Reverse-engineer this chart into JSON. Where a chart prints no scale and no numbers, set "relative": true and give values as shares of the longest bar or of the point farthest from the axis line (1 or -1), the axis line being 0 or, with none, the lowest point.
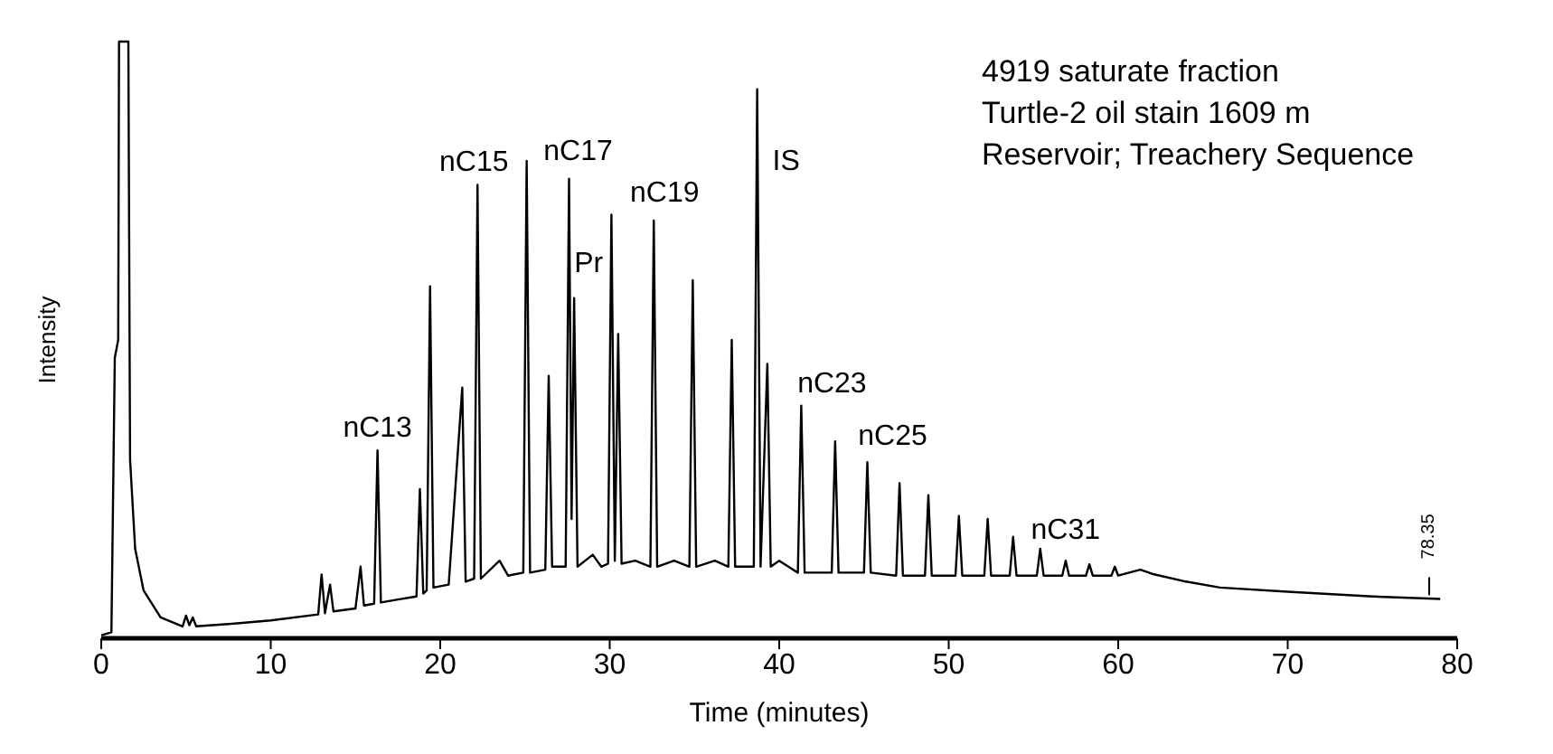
{
  "chart_data": {
    "type": "line",
    "relative": true,
    "xlabel": "Time (minutes)",
    "ylabel": "Intensity",
    "xlim": [
      0,
      80
    ],
    "xticks": [
      0,
      10,
      20,
      30,
      40,
      50,
      60,
      70,
      80
    ],
    "marker": "none",
    "x": [
      0,
      0.6,
      0.8,
      1.0,
      1.05,
      1.6,
      1.7,
      2.0,
      2.5,
      3.5,
      4.8,
      5.0,
      5.2,
      5.4,
      5.6,
      8,
      10,
      12.8,
      13.0,
      13.2,
      13.5,
      13.7,
      15,
      15.3,
      15.5,
      16.1,
      16.3,
      16.5,
      17.5,
      18.6,
      18.8,
      19.0,
      19.2,
      19.4,
      19.6,
      20.5,
      21.3,
      21.5,
      22.0,
      22.2,
      22.4,
      23.5,
      24,
      24.9,
      25.1,
      25.3,
      26.2,
      26.4,
      26.6,
      27.4,
      27.6,
      27.75,
      27.9,
      28.1,
      29,
      29.5,
      29.9,
      30.1,
      30.3,
      30.5,
      30.7,
      31.5,
      32.4,
      32.6,
      32.8,
      33.8,
      34.7,
      34.9,
      35.1,
      36.2,
      37.0,
      37.2,
      37.4,
      38.5,
      38.7,
      38.9,
      39.3,
      39.5,
      40,
      41.1,
      41.3,
      41.5,
      43.1,
      43.3,
      43.5,
      45.0,
      45.2,
      45.4,
      46.9,
      47.1,
      47.3,
      48.6,
      48.8,
      49.0,
      50.4,
      50.6,
      50.8,
      52.1,
      52.3,
      52.5,
      53.6,
      53.8,
      54.0,
      55.2,
      55.4,
      55.6,
      56.7,
      56.9,
      57.1,
      58.1,
      58.3,
      58.5,
      59.6,
      59.8,
      60.0,
      61.3,
      62,
      64,
      66,
      70,
      75,
      79
    ],
    "series": [
      {
        "color": "#000000",
        "values": [
          0.005,
          0.01,
          0.47,
          0.5,
          1,
          1,
          0.3,
          0.15,
          0.08,
          0.035,
          0.02,
          0.038,
          0.022,
          0.035,
          0.02,
          0.025,
          0.03,
          0.04,
          0.107,
          0.042,
          0.09,
          0.045,
          0.05,
          0.12,
          0.055,
          0.058,
          0.315,
          0.06,
          0.065,
          0.07,
          0.25,
          0.075,
          0.08,
          0.59,
          0.085,
          0.09,
          0.42,
          0.095,
          0.1,
          0.76,
          0.1,
          0.13,
          0.105,
          0.11,
          0.8,
          0.11,
          0.115,
          0.44,
          0.12,
          0.12,
          0.77,
          0.2,
          0.57,
          0.12,
          0.14,
          0.12,
          0.125,
          0.71,
          0.13,
          0.51,
          0.125,
          0.13,
          0.12,
          0.7,
          0.12,
          0.13,
          0.12,
          0.6,
          0.12,
          0.13,
          0.12,
          0.5,
          0.12,
          0.12,
          0.92,
          0.12,
          0.46,
          0.12,
          0.13,
          0.11,
          0.39,
          0.11,
          0.11,
          0.33,
          0.11,
          0.11,
          0.295,
          0.11,
          0.105,
          0.26,
          0.105,
          0.105,
          0.24,
          0.105,
          0.105,
          0.205,
          0.105,
          0.105,
          0.2,
          0.105,
          0.105,
          0.17,
          0.105,
          0.105,
          0.15,
          0.105,
          0.105,
          0.13,
          0.105,
          0.105,
          0.124,
          0.105,
          0.105,
          0.12,
          0.105,
          0.115,
          0.108,
          0.095,
          0.085,
          0.078,
          0.07,
          0.066
        ]
      }
    ],
    "annotations": [
      "4919 saturate fraction",
      "Turtle-2 oil stain 1609 m",
      "Reservoir; Treachery Sequence",
      {
        "text": "nC13",
        "x": 16.3,
        "y": 0.315
      },
      {
        "text": "nC15",
        "x": 22.2,
        "y": 0.76
      },
      {
        "text": "nC17",
        "x": 27.6,
        "y": 0.77
      },
      {
        "text": "Pr",
        "x": 27.9,
        "y": 0.57
      },
      {
        "text": "nC19",
        "x": 32.6,
        "y": 0.7
      },
      {
        "text": "IS",
        "x": 38.7,
        "y": 0.92
      },
      {
        "text": "nC23",
        "x": 41.3,
        "y": 0.39
      },
      {
        "text": "nC25",
        "x": 45.2,
        "y": 0.295
      },
      {
        "text": "nC31",
        "x": 55.4,
        "y": 0.15
      },
      {
        "text": "78.35",
        "x": 78.35,
        "y": 0.066
      }
    ]
  }
}
